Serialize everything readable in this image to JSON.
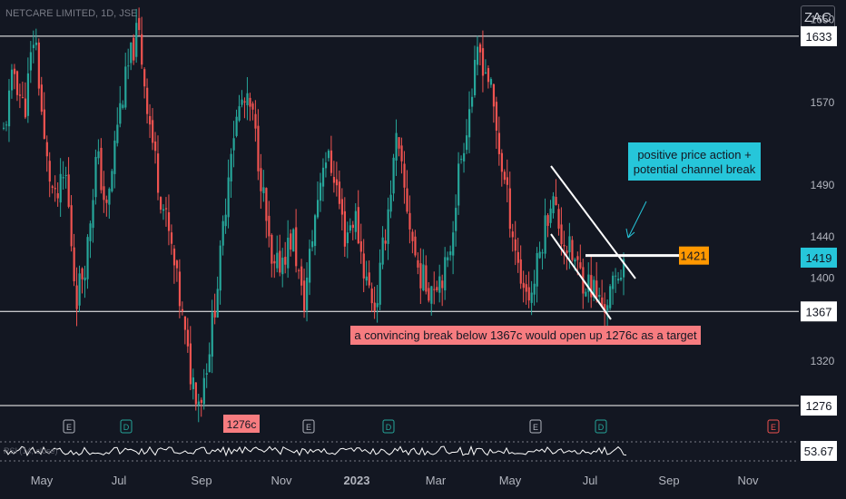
{
  "header": {
    "symbol": "NETCARE LIMITED, 1D, JSE",
    "currency": "ZAC"
  },
  "colors": {
    "bg": "#131722",
    "up": "#26a69a",
    "down": "#ef5350",
    "grid_line": "#ffffff",
    "callout_teal": "#26c6da",
    "callout_red": "#f77c80",
    "orange": "#ff9800"
  },
  "chart_data": {
    "type": "candlestick",
    "y_ticks": [
      1650,
      1570,
      1490,
      1440,
      1400,
      1320
    ],
    "ylim": [
      1262,
      1668
    ],
    "x_ticks": [
      "May",
      "Jul",
      "Sep",
      "Nov",
      "2023",
      "Mar",
      "May",
      "Jul",
      "Sep",
      "Nov"
    ],
    "levels": [
      {
        "value": 1633,
        "label": "1633"
      },
      {
        "value": 1367,
        "label": "1367"
      },
      {
        "value": 1276,
        "label": "1276"
      }
    ],
    "resistance_segment": {
      "value": 1421,
      "label": "1421"
    },
    "last_price": {
      "value": 1419,
      "label": "1419"
    },
    "control_points": [
      1540,
      1600,
      1560,
      1640,
      1520,
      1470,
      1500,
      1380,
      1420,
      1520,
      1460,
      1550,
      1600,
      1640,
      1560,
      1490,
      1440,
      1380,
      1310,
      1280,
      1340,
      1420,
      1530,
      1570,
      1560,
      1490,
      1400,
      1420,
      1440,
      1370,
      1450,
      1520,
      1500,
      1440,
      1460,
      1400,
      1370,
      1450,
      1530,
      1470,
      1410,
      1390,
      1400,
      1410,
      1500,
      1560,
      1620,
      1590,
      1520,
      1460,
      1400,
      1380,
      1430,
      1480,
      1440,
      1420,
      1400,
      1390,
      1370,
      1390,
      1419
    ],
    "annotations": {
      "bullish": "positive price action +\npotential channel break",
      "bearish": "a convincing break below 1367c would open up 1276c as a target",
      "target": "1276c"
    },
    "events": [
      "E",
      "D",
      "E",
      "D",
      "E",
      "D",
      "E"
    ],
    "rsi": {
      "label": "RSI (14, close)",
      "value": "53.67"
    }
  }
}
